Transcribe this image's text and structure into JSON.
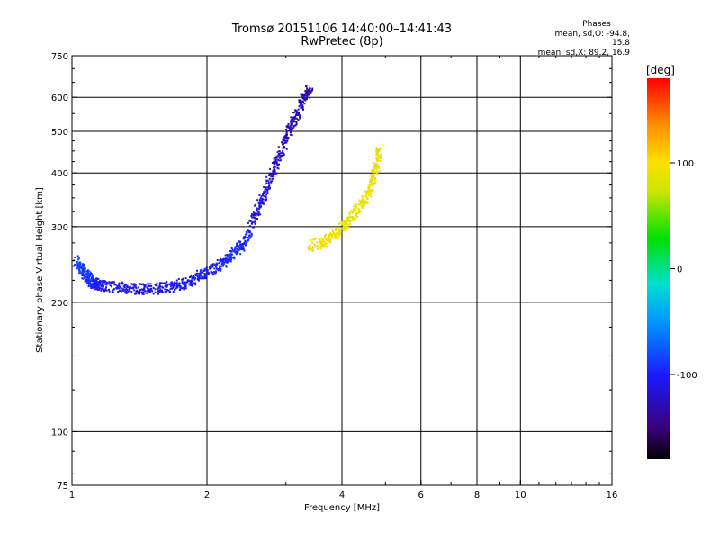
{
  "header": {
    "line1": "Tromsø 20151106 14:40:00–14:41:43",
    "line2": "RwPretec (8p)"
  },
  "phase_info": {
    "title": "Phases",
    "line_o": "mean, sd,O: -94.8, 15.8",
    "line_x": "mean, sd,X:  89.2, 16.9"
  },
  "colorbar": {
    "label": "[deg]",
    "ticks": [
      {
        "value": 100,
        "label": "100"
      },
      {
        "value": 0,
        "label": "0"
      },
      {
        "value": -100,
        "label": "-100"
      }
    ],
    "range": [
      -180,
      180
    ]
  },
  "chart_data": {
    "type": "scatter",
    "title": "Tromsø 20151106 14:40:00–14:41:43",
    "subtitle": "RwPretec (8p)",
    "xlabel": "Frequency [MHz]",
    "ylabel": "Stationary phase Virtual Height [km]",
    "xscale": "log2",
    "yscale": "log",
    "xlim": [
      1,
      16
    ],
    "ylim": [
      75,
      750
    ],
    "grid": true,
    "xticks": [
      {
        "value": 1,
        "label": "1"
      },
      {
        "value": 2,
        "label": "2"
      },
      {
        "value": 4,
        "label": "4"
      },
      {
        "value": 6,
        "label": "6"
      },
      {
        "value": 8,
        "label": "8"
      },
      {
        "value": 10,
        "label": "10"
      },
      {
        "value": 16,
        "label": "16"
      }
    ],
    "yticks": [
      {
        "value": 75,
        "label": "75"
      },
      {
        "value": 100,
        "label": "100"
      },
      {
        "value": 200,
        "label": "200"
      },
      {
        "value": 300,
        "label": "300"
      },
      {
        "value": 400,
        "label": "400"
      },
      {
        "value": 500,
        "label": "500"
      },
      {
        "value": 600,
        "label": "600"
      },
      {
        "value": 750,
        "label": "750"
      }
    ],
    "xgrid_major": [
      1,
      2,
      4,
      8,
      16
    ],
    "xgrid_minor": [
      6,
      10
    ],
    "ygrid": [
      100,
      200,
      300,
      400,
      500,
      600
    ],
    "colorscale": "phase -180 (black) to 180 (red), rainbow",
    "series": [
      {
        "name": "",
        "trace": "O-mode low-height band",
        "points": [
          [
            1.02,
            250,
            -80
          ],
          [
            1.05,
            240,
            -85
          ],
          [
            1.08,
            230,
            -90
          ],
          [
            1.1,
            225,
            -95
          ],
          [
            1.12,
            222,
            -100
          ],
          [
            1.15,
            220,
            -105
          ],
          [
            1.2,
            218,
            -110
          ],
          [
            1.3,
            216,
            -110
          ],
          [
            1.4,
            215,
            -110
          ],
          [
            1.5,
            215,
            -110
          ],
          [
            1.6,
            216,
            -108
          ],
          [
            1.7,
            218,
            -108
          ],
          [
            1.8,
            222,
            -105
          ],
          [
            1.9,
            228,
            -105
          ],
          [
            2.0,
            235,
            -100
          ],
          [
            2.1,
            242,
            -98
          ],
          [
            2.2,
            250,
            -96
          ],
          [
            2.3,
            260,
            -95
          ],
          [
            2.4,
            272,
            -95
          ],
          [
            2.5,
            290,
            -92
          ]
        ]
      },
      {
        "name": "",
        "trace": "O-mode upper band",
        "points": [
          [
            2.5,
            300,
            -110
          ],
          [
            2.6,
            330,
            -112
          ],
          [
            2.7,
            360,
            -115
          ],
          [
            2.8,
            400,
            -118
          ],
          [
            2.9,
            440,
            -120
          ],
          [
            3.0,
            480,
            -122
          ],
          [
            3.1,
            520,
            -125
          ],
          [
            3.2,
            560,
            -125
          ],
          [
            3.3,
            600,
            -128
          ],
          [
            3.4,
            630,
            -130
          ]
        ]
      },
      {
        "name": "",
        "trace": "X-mode band",
        "points": [
          [
            3.4,
            270,
            95
          ],
          [
            3.6,
            275,
            95
          ],
          [
            3.8,
            285,
            92
          ],
          [
            4.0,
            300,
            90
          ],
          [
            4.2,
            315,
            90
          ],
          [
            4.4,
            335,
            88
          ],
          [
            4.6,
            360,
            88
          ],
          [
            4.7,
            390,
            88
          ],
          [
            4.8,
            420,
            88
          ],
          [
            4.85,
            460,
            85
          ]
        ]
      }
    ]
  }
}
